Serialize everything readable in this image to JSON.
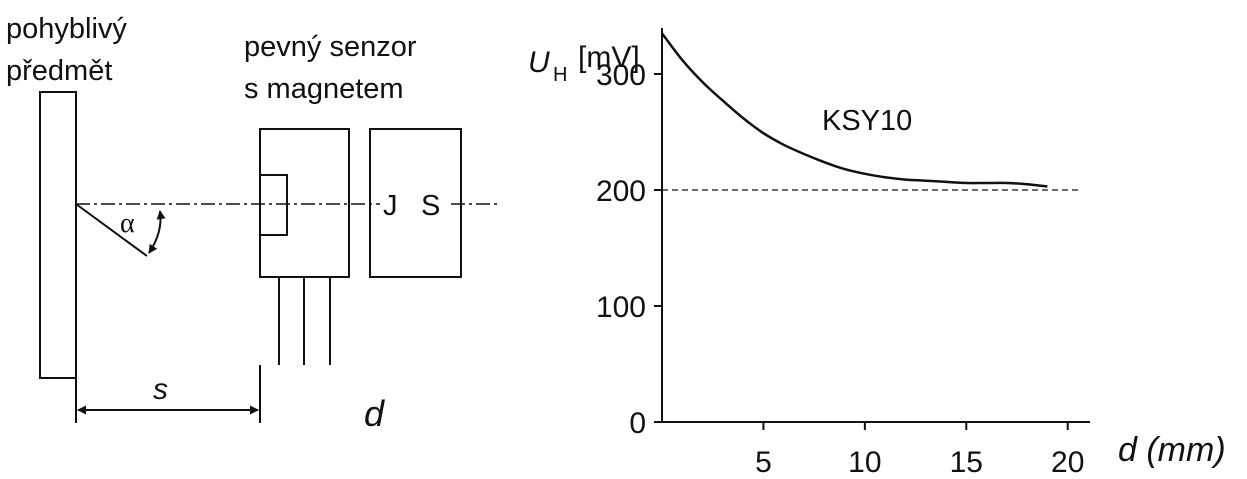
{
  "diagram": {
    "moving_object_label": [
      "pohyblivý",
      "předmět"
    ],
    "fixed_sensor_label": [
      "pevný senzor",
      "s magnetem"
    ],
    "angle_symbol": "α",
    "distance_symbol": "s",
    "d_symbol": "d",
    "magnet_labels": [
      "J",
      "S"
    ]
  },
  "chart_data": {
    "type": "line",
    "ylabel_main": "U",
    "ylabel_sub": "H",
    "ylabel_unit": "[mV]",
    "xlabel": "d (mm)",
    "x_ticks": [
      5,
      10,
      15,
      20
    ],
    "y_ticks": [
      0,
      100,
      200,
      300
    ],
    "xlim": [
      0,
      21
    ],
    "ylim": [
      0,
      350
    ],
    "series": [
      {
        "name": "KSY10",
        "x": [
          0,
          1,
          2,
          3,
          4,
          5,
          6,
          7,
          8,
          9,
          10,
          11,
          12,
          13,
          14,
          15,
          16,
          17,
          18,
          19
        ],
        "y": [
          335,
          312,
          293,
          277,
          262,
          249,
          239,
          231,
          224,
          218,
          214,
          211,
          209,
          208,
          207,
          206,
          206,
          206,
          205,
          203
        ]
      }
    ],
    "reference_line": 200
  }
}
